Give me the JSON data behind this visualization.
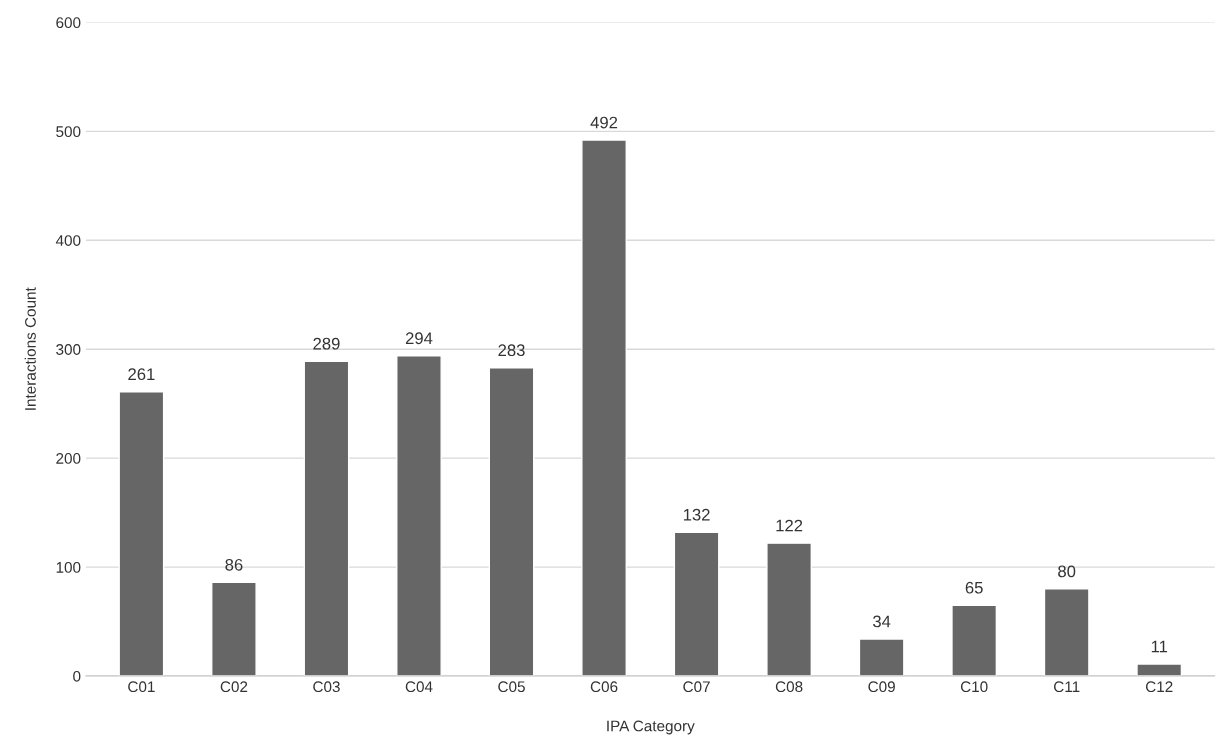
{
  "chart_data": {
    "type": "bar",
    "xlabel": "IPA Category",
    "ylabel": "Interactions Count",
    "categories": [
      "C01",
      "C02",
      "C03",
      "C04",
      "C05",
      "C06",
      "C07",
      "C08",
      "C09",
      "C10",
      "C11",
      "C12"
    ],
    "values": [
      261,
      86,
      289,
      294,
      283,
      492,
      132,
      122,
      34,
      65,
      80,
      11
    ],
    "color": "#666666",
    "ylim": [
      0,
      600
    ],
    "yticks": [
      0,
      100,
      200,
      300,
      400,
      500,
      600
    ],
    "grid": "y",
    "data_labels": true
  }
}
